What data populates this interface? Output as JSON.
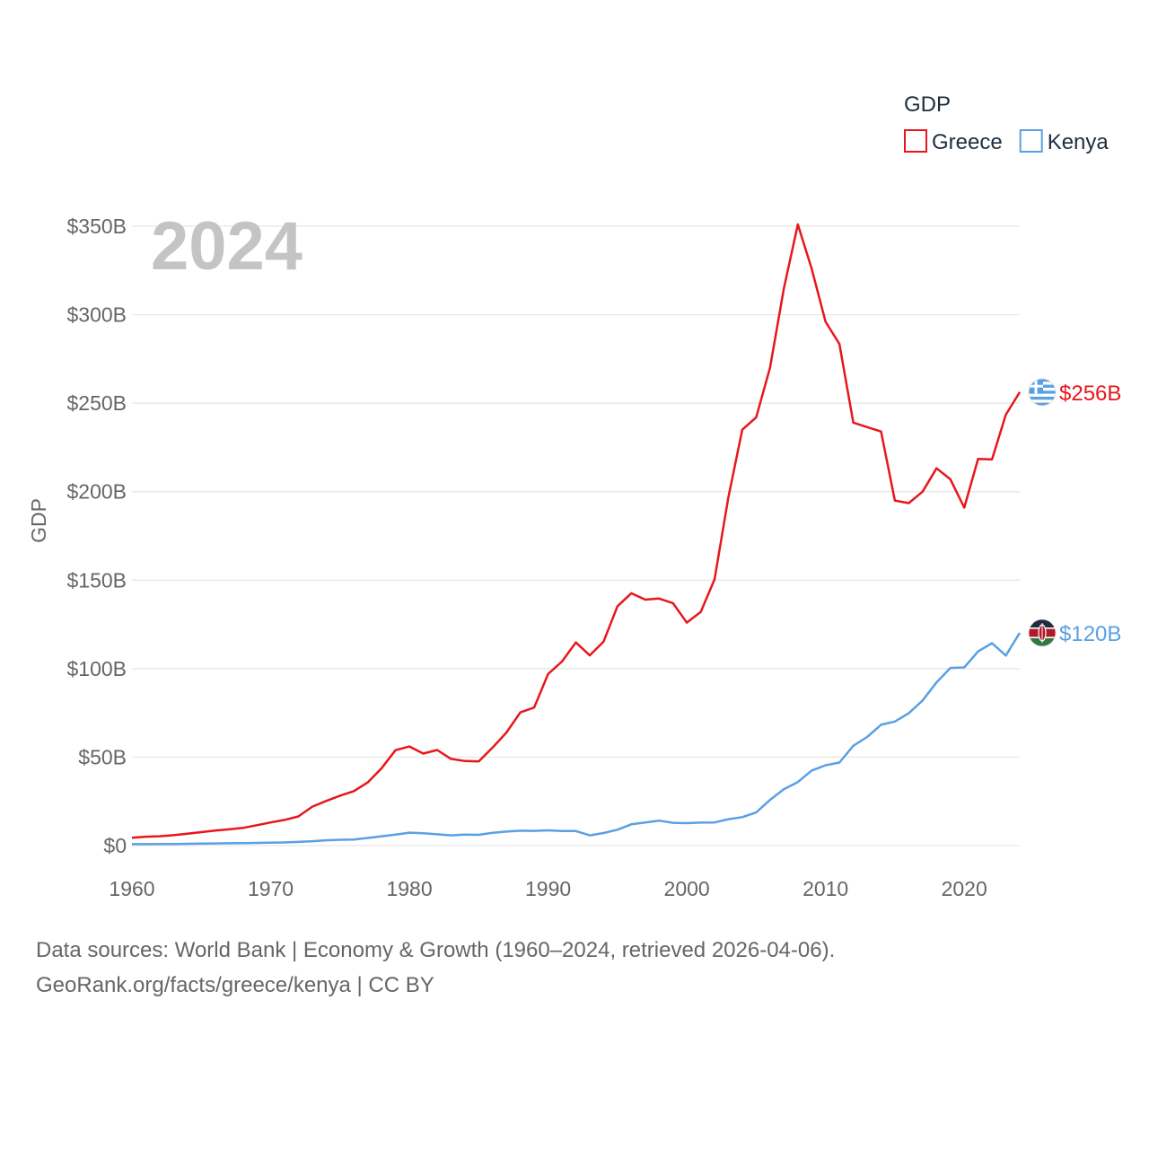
{
  "chart_data": {
    "type": "line",
    "title": "GDP",
    "year_label": "2024",
    "xlabel": "",
    "ylabel": "GDP",
    "xlim": [
      1960,
      2024
    ],
    "ylim": [
      0,
      350
    ],
    "y_unit": "billion USD",
    "x_ticks": [
      1960,
      1970,
      1980,
      1990,
      2000,
      2010,
      2020
    ],
    "x_tick_labels": [
      "1960",
      "1970",
      "1980",
      "1990",
      "2000",
      "2010",
      "2020"
    ],
    "y_ticks": [
      0,
      50,
      100,
      150,
      200,
      250,
      300,
      350
    ],
    "y_tick_labels": [
      "$0",
      "$50B",
      "$100B",
      "$150B",
      "$200B",
      "$250B",
      "$300B",
      "$350B"
    ],
    "grid": true,
    "legend_position": "top-right",
    "x": [
      1960,
      1961,
      1962,
      1963,
      1964,
      1965,
      1966,
      1967,
      1968,
      1969,
      1970,
      1971,
      1972,
      1973,
      1974,
      1975,
      1976,
      1977,
      1978,
      1979,
      1980,
      1981,
      1982,
      1983,
      1984,
      1985,
      1986,
      1987,
      1988,
      1989,
      1990,
      1991,
      1992,
      1993,
      1994,
      1995,
      1996,
      1997,
      1998,
      1999,
      2000,
      2001,
      2002,
      2003,
      2004,
      2005,
      2006,
      2007,
      2008,
      2009,
      2010,
      2011,
      2012,
      2013,
      2014,
      2015,
      2016,
      2017,
      2018,
      2019,
      2020,
      2021,
      2022,
      2023,
      2024
    ],
    "series": [
      {
        "name": "Greece",
        "color": "#e8161b",
        "end_label": "$256B",
        "values": [
          4.4,
          5.0,
          5.3,
          5.9,
          6.7,
          7.6,
          8.5,
          9.2,
          10.0,
          11.5,
          13.1,
          14.5,
          16.5,
          22.0,
          25.2,
          28.2,
          30.8,
          35.7,
          43.8,
          53.9,
          56.0,
          52.0,
          54.0,
          49.0,
          47.8,
          47.6,
          55.4,
          63.9,
          75.3,
          78.0,
          97.0,
          104.0,
          114.8,
          107.5,
          115.3,
          135.3,
          142.6,
          139.0,
          139.6,
          137.0,
          126.0,
          132.0,
          150.4,
          197.0,
          235.0,
          242.0,
          270.0,
          315.0,
          351.0,
          326.0,
          296.0,
          283.5,
          239.0,
          236.5,
          234.0,
          195.0,
          193.5,
          200.0,
          213.2,
          207.0,
          191.0,
          218.5,
          218.2,
          243.5,
          256.2
        ]
      },
      {
        "name": "Kenya",
        "color": "#5aa0e3",
        "end_label": "$120B",
        "values": [
          0.8,
          0.8,
          0.9,
          0.9,
          1.0,
          1.1,
          1.2,
          1.3,
          1.4,
          1.5,
          1.6,
          1.8,
          2.1,
          2.5,
          3.0,
          3.3,
          3.4,
          4.3,
          5.3,
          6.2,
          7.3,
          7.0,
          6.4,
          5.8,
          6.2,
          6.1,
          7.2,
          7.9,
          8.4,
          8.3,
          8.6,
          8.2,
          8.2,
          5.8,
          7.1,
          9.0,
          12.0,
          13.1,
          14.1,
          12.9,
          12.7,
          13.0,
          13.1,
          14.9,
          16.1,
          18.7,
          25.8,
          31.9,
          35.9,
          42.4,
          45.4,
          46.9,
          56.4,
          61.4,
          68.3,
          70.1,
          74.8,
          82.0,
          92.2,
          100.4,
          100.7,
          109.7,
          114.4,
          107.4,
          120.2
        ]
      }
    ]
  },
  "footer": {
    "line1": "Data sources: World Bank | Economy & Growth (1960–2024, retrieved 2026-04-06).",
    "line2": "GeoRank.org/facts/greece/kenya | CC BY"
  },
  "flags": {
    "greece": {
      "icon": "greece-flag-icon",
      "blue": "#5aa0e3",
      "white": "#ffffff"
    },
    "kenya": {
      "icon": "kenya-flag-icon",
      "black": "#1f2d3d",
      "red": "#b3172c",
      "green": "#2f7a3d",
      "white": "#ffffff"
    }
  },
  "colors": {
    "grid": "#e6e6e6",
    "tick": "#666666",
    "year": "#c4c4c4"
  }
}
